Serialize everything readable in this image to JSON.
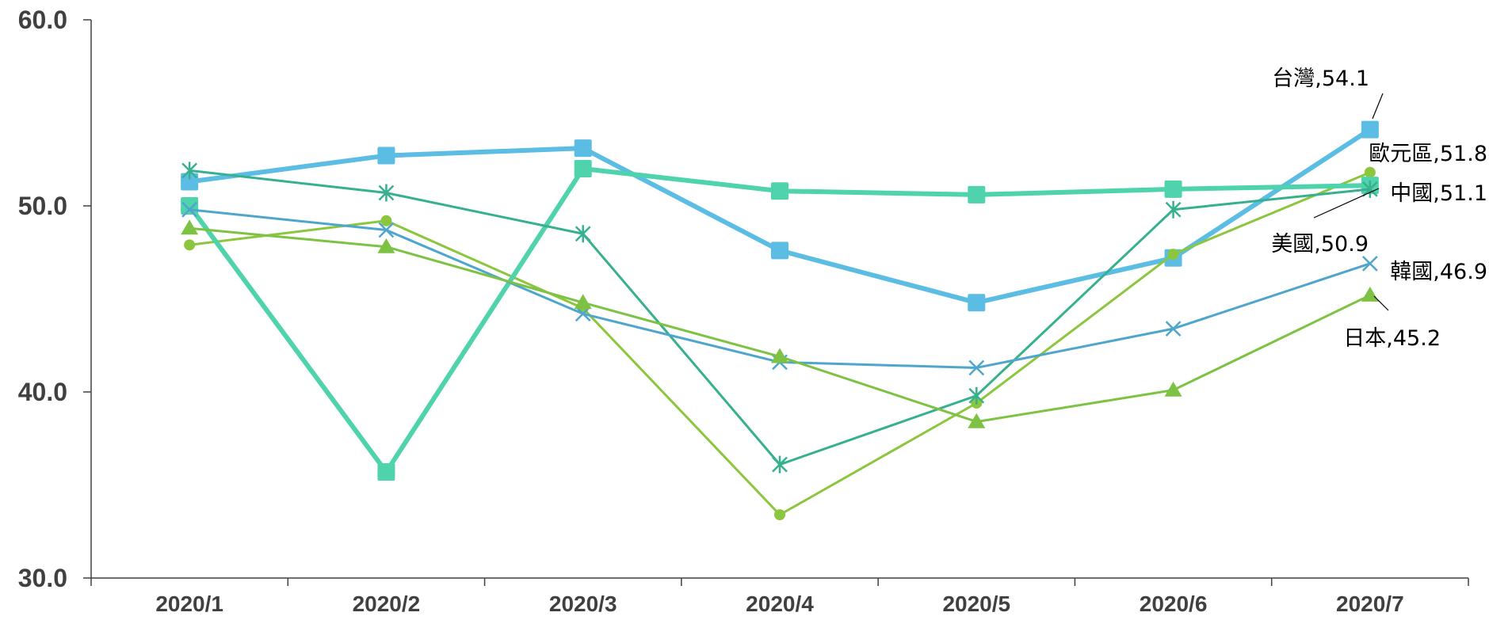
{
  "chart_data": {
    "type": "line",
    "categories": [
      "2020/1",
      "2020/2",
      "2020/3",
      "2020/4",
      "2020/5",
      "2020/6",
      "2020/7"
    ],
    "ylim": [
      30,
      60
    ],
    "yticks": [
      "30.0",
      "40.0",
      "50.0",
      "60.0"
    ],
    "grid": false,
    "legend": "none",
    "series": [
      {
        "name": "台灣",
        "label": "台灣,54.1",
        "values": [
          51.3,
          52.7,
          53.1,
          47.6,
          44.8,
          47.2,
          54.1
        ],
        "color": "#5bbde3",
        "marker": "square",
        "emphasis": "thick"
      },
      {
        "name": "歐元區",
        "label": "歐元區,51.8",
        "values": [
          47.9,
          49.2,
          44.5,
          33.4,
          39.4,
          47.4,
          51.8
        ],
        "color": "#8cc63e",
        "marker": "circle",
        "emphasis": "thin"
      },
      {
        "name": "中國",
        "label": "中國,51.1",
        "values": [
          50.0,
          35.7,
          52.0,
          50.8,
          50.6,
          50.9,
          51.1
        ],
        "color": "#4fd3ac",
        "marker": "square",
        "emphasis": "thick"
      },
      {
        "name": "美國",
        "label": "美國,50.9",
        "values": [
          51.9,
          50.7,
          48.5,
          36.1,
          39.8,
          49.8,
          50.9
        ],
        "color": "#36b08f",
        "marker": "star",
        "emphasis": "thin"
      },
      {
        "name": "韓國",
        "label": "韓國,46.9",
        "values": [
          49.8,
          48.7,
          44.2,
          41.6,
          41.3,
          43.4,
          46.9
        ],
        "color": "#4fa6cc",
        "marker": "x",
        "emphasis": "thin"
      },
      {
        "name": "日本",
        "label": "日本,45.2",
        "values": [
          48.8,
          47.8,
          44.8,
          41.9,
          38.4,
          40.1,
          45.2
        ],
        "color": "#7dc242",
        "marker": "triangle",
        "emphasis": "thin"
      }
    ]
  }
}
